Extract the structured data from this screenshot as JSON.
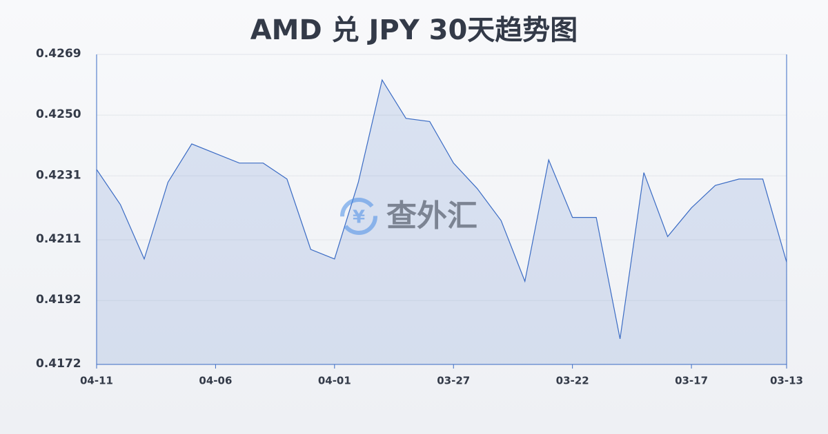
{
  "chart_data": {
    "type": "area",
    "title": "AMD 兑 JPY 30天趋势图",
    "watermark": "查外汇",
    "categories": [
      "04-11",
      null,
      null,
      null,
      null,
      "04-06",
      null,
      null,
      null,
      null,
      "04-01",
      null,
      null,
      null,
      null,
      "03-27",
      null,
      null,
      null,
      null,
      "03-22",
      null,
      null,
      null,
      null,
      "03-17",
      null,
      null,
      null,
      "03-13"
    ],
    "values": [
      0.4233,
      0.4222,
      0.4205,
      0.4229,
      0.4241,
      0.4238,
      0.4235,
      0.4235,
      0.423,
      0.4208,
      0.4205,
      0.4229,
      0.4261,
      0.4249,
      0.4248,
      0.4235,
      0.4227,
      0.4217,
      0.4198,
      0.4236,
      0.4218,
      0.4218,
      0.418,
      0.4232,
      0.4212,
      0.4221,
      0.4228,
      0.423,
      0.423,
      0.4204
    ],
    "color": "#3a6bc4",
    "ylim": [
      0.4172,
      0.4269
    ],
    "yticks": [
      0.4172,
      0.4192,
      0.4211,
      0.4231,
      {
        "value": 0.425,
        "label": "0.4250"
      },
      0.4269
    ],
    "grid": true
  }
}
